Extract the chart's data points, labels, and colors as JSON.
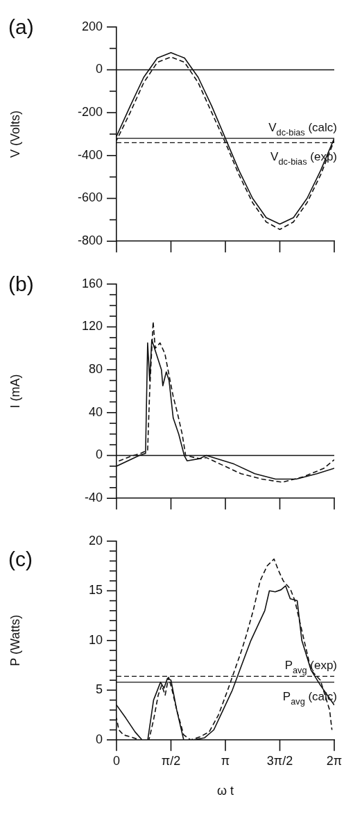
{
  "chart_data": [
    {
      "type": "line",
      "title": "(a)",
      "ylabel": "V (Volts)",
      "xlim": [
        0,
        6.283
      ],
      "ylim": [
        -800,
        200
      ],
      "tick_labels": "y",
      "xticks": [
        {
          "value": 0,
          "label": null
        },
        {
          "value": 1.571,
          "label": null
        },
        {
          "value": 3.142,
          "label": null
        },
        {
          "value": 4.712,
          "label": null
        },
        {
          "value": 6.283,
          "label": null
        }
      ],
      "yticks": [
        -800,
        {
          "value": -700,
          "label": null
        },
        -600,
        {
          "value": -500,
          "label": null
        },
        -400,
        {
          "value": -300,
          "label": null
        },
        -200,
        {
          "value": -100,
          "label": null
        },
        0,
        {
          "value": 100,
          "label": null
        },
        200
      ],
      "ref_lines": [
        {
          "axis": "y",
          "value": 0,
          "label": null,
          "line_style": "solid"
        },
        {
          "axis": "y",
          "value": -320,
          "label": "V$_{dc-bias}$ (calc)",
          "line_style": "solid"
        },
        {
          "axis": "y",
          "value": -340,
          "label": "V$_{dc-bias}$ (exp)",
          "line_style": "dashed"
        }
      ],
      "series": [
        {
          "color": "#111111",
          "line_style": "solid",
          "x": [
            0,
            0.393,
            0.785,
            1.178,
            1.571,
            1.963,
            2.356,
            2.749,
            3.142,
            3.534,
            3.927,
            4.32,
            4.712,
            5.105,
            5.498,
            5.89,
            6.283
          ],
          "values": [
            -310,
            -170,
            -35,
            55,
            80,
            55,
            -35,
            -170,
            -320,
            -470,
            -600,
            -690,
            -720,
            -690,
            -600,
            -470,
            -320
          ]
        },
        {
          "color": "#111111",
          "line_style": "dashed",
          "x": [
            0,
            0.393,
            0.785,
            1.178,
            1.571,
            1.963,
            2.356,
            2.749,
            3.142,
            3.534,
            3.927,
            4.32,
            4.712,
            5.105,
            5.498,
            5.89,
            6.283
          ],
          "values": [
            -330,
            -200,
            -60,
            35,
            60,
            35,
            -60,
            -200,
            -340,
            -490,
            -620,
            -710,
            -745,
            -710,
            -620,
            -490,
            -330
          ]
        }
      ]
    },
    {
      "type": "line",
      "title": "(b)",
      "ylabel": "I (mA)",
      "xlim": [
        0,
        6.283
      ],
      "ylim": [
        -40,
        160
      ],
      "tick_labels": "y",
      "xticks": [
        {
          "value": 0,
          "label": null
        },
        {
          "value": 1.571,
          "label": null
        },
        {
          "value": 3.142,
          "label": null
        },
        {
          "value": 4.712,
          "label": null
        },
        {
          "value": 6.283,
          "label": null
        }
      ],
      "yticks": [
        -40,
        {
          "value": -30,
          "label": null
        },
        {
          "value": -20,
          "label": null
        },
        {
          "value": -10,
          "label": null
        },
        0,
        {
          "value": 10,
          "label": null
        },
        {
          "value": 20,
          "label": null
        },
        {
          "value": 30,
          "label": null
        },
        40,
        {
          "value": 50,
          "label": null
        },
        {
          "value": 60,
          "label": null
        },
        {
          "value": 70,
          "label": null
        },
        80,
        {
          "value": 90,
          "label": null
        },
        {
          "value": 100,
          "label": null
        },
        {
          "value": 110,
          "label": null
        },
        120,
        {
          "value": 130,
          "label": null
        },
        {
          "value": 140,
          "label": null
        },
        {
          "value": 150,
          "label": null
        },
        160
      ],
      "ref_lines": [
        {
          "axis": "y",
          "value": 0,
          "label": null,
          "line_style": "solid"
        }
      ],
      "series": [
        {
          "color": "#111111",
          "line_style": "solid",
          "x": [
            0,
            0.658,
            0.838,
            0.898,
            0.957,
            1.017,
            1.197,
            1.297,
            1.336,
            1.436,
            1.516,
            1.636,
            1.795,
            1.955,
            2.035,
            2.394,
            2.593,
            3.391,
            3.989,
            4.588,
            5.186,
            5.785,
            6.283
          ],
          "values": [
            -10,
            0,
            2,
            105,
            70,
            108,
            90,
            80,
            65,
            78,
            70,
            35,
            20,
            0,
            -5,
            -3,
            0,
            -8,
            -17,
            -22,
            -22,
            -17,
            -12
          ]
        },
        {
          "color": "#111111",
          "line_style": "dashed",
          "x": [
            0,
            0.399,
            0.698,
            0.898,
            0.957,
            1.057,
            1.117,
            1.257,
            1.396,
            1.636,
            1.755,
            1.895,
            1.995,
            2.394,
            2.593,
            2.992,
            3.59,
            4.189,
            4.787,
            5.386,
            5.984,
            6.283
          ],
          "values": [
            -6,
            -1,
            2,
            5,
            60,
            125,
            100,
            105,
            95,
            55,
            40,
            20,
            0,
            -3,
            -2,
            -8,
            -17,
            -22,
            -25,
            -20,
            -12,
            -4
          ]
        }
      ]
    },
    {
      "type": "line",
      "title": "(c)",
      "ylabel": "P (Watts)",
      "xlabel": "ω t",
      "xlim": [
        0,
        6.283
      ],
      "ylim": [
        0,
        20
      ],
      "xticks": [
        {
          "value": 0,
          "label": "0"
        },
        {
          "value": 1.571,
          "label": "π/2"
        },
        {
          "value": 3.142,
          "label": "π"
        },
        {
          "value": 4.712,
          "label": "3π/2"
        },
        {
          "value": 6.283,
          "label": "2π"
        }
      ],
      "yticks": [
        0,
        {
          "value": 1,
          "label": null
        },
        {
          "value": 2,
          "label": null
        },
        {
          "value": 3,
          "label": null
        },
        {
          "value": 4,
          "label": null
        },
        5,
        {
          "value": 6,
          "label": null
        },
        {
          "value": 7,
          "label": null
        },
        {
          "value": 8,
          "label": null
        },
        {
          "value": 9,
          "label": null
        },
        10,
        {
          "value": 11,
          "label": null
        },
        {
          "value": 12,
          "label": null
        },
        {
          "value": 13,
          "label": null
        },
        {
          "value": 14,
          "label": null
        },
        15,
        {
          "value": 16,
          "label": null
        },
        {
          "value": 17,
          "label": null
        },
        {
          "value": 18,
          "label": null
        },
        {
          "value": 19,
          "label": null
        },
        20
      ],
      "ref_lines": [
        {
          "axis": "y",
          "value": 6.4,
          "label": "P$_{avg}$ (exp)",
          "line_style": "dashed"
        },
        {
          "axis": "y",
          "value": 5.8,
          "label": "P$_{avg}$ (calc)",
          "line_style": "solid"
        }
      ],
      "series": [
        {
          "color": "#111111",
          "line_style": "solid",
          "x": [
            0,
            0.267,
            0.535,
            0.735,
            0.902,
            1.069,
            1.27,
            1.37,
            1.47,
            1.571,
            1.738,
            1.938,
            2.206,
            2.54,
            2.807,
            3.075,
            3.342,
            3.609,
            3.877,
            4.077,
            4.278,
            4.411,
            4.579,
            4.746,
            4.879,
            5.013,
            5.214,
            5.347,
            5.615,
            5.882,
            6.283
          ],
          "values": [
            3.5,
            2.2,
            0.8,
            0,
            0,
            4,
            5.8,
            5.2,
            6.2,
            6,
            3,
            0,
            0,
            0.2,
            1,
            3,
            5,
            7.5,
            10,
            11.5,
            13,
            15,
            14.9,
            15.1,
            15.5,
            14.2,
            14,
            10,
            7,
            5.5,
            3.5
          ]
        },
        {
          "color": "#111111",
          "line_style": "dashed",
          "x": [
            0,
            0.067,
            0.201,
            0.401,
            0.668,
            0.936,
            1.069,
            1.203,
            1.303,
            1.404,
            1.504,
            1.604,
            1.738,
            1.938,
            2.139,
            2.406,
            2.674,
            2.941,
            3.208,
            3.408,
            3.609,
            3.743,
            3.944,
            4.144,
            4.345,
            4.545,
            4.679,
            4.812,
            5.013,
            5.147,
            5.347,
            5.615,
            5.882,
            6.149,
            6.216
          ],
          "values": [
            2.2,
            1,
            0.5,
            0.3,
            0,
            0,
            2,
            4.5,
            5.5,
            4.5,
            6.3,
            5,
            3,
            0.5,
            0,
            0.3,
            0.8,
            2.5,
            5,
            7,
            9,
            10.5,
            13,
            16,
            17.5,
            18.2,
            17,
            16,
            15.2,
            14,
            11,
            7,
            6,
            3,
            1
          ]
        }
      ]
    }
  ]
}
